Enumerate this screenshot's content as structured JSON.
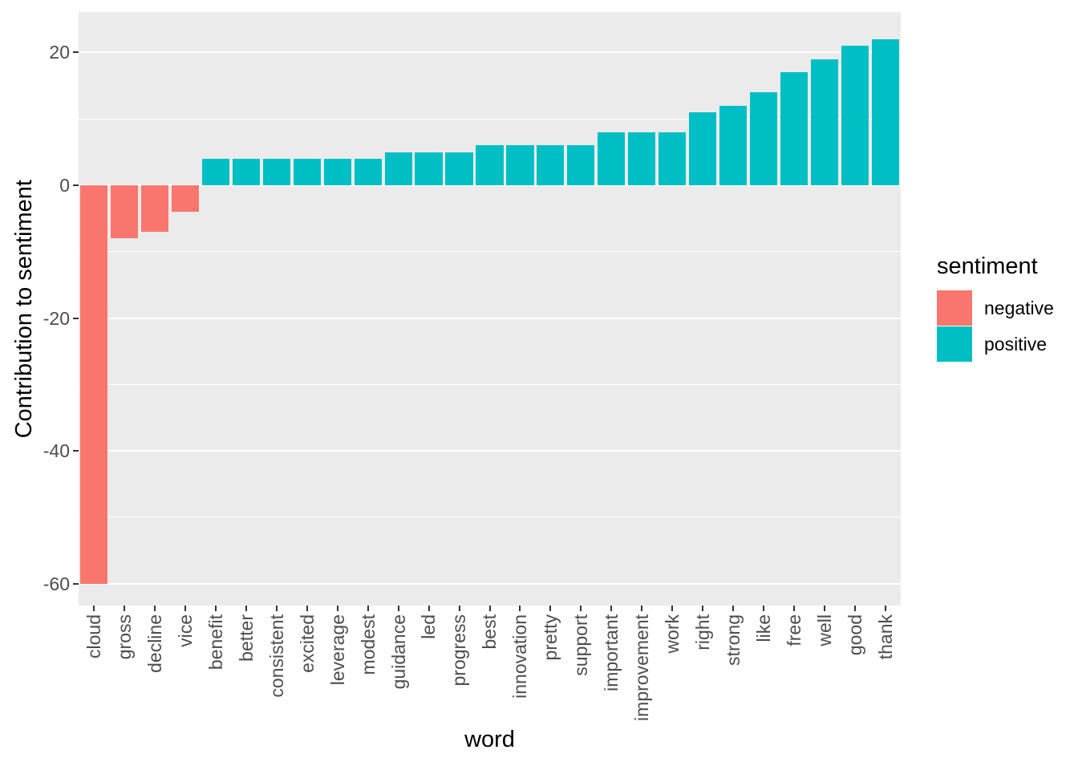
{
  "chart_data": {
    "type": "bar",
    "title": "",
    "xlabel": "word",
    "ylabel": "Contribution to sentiment",
    "categories": [
      "cloud",
      "gross",
      "decline",
      "vice",
      "benefit",
      "better",
      "consistent",
      "excited",
      "leverage",
      "modest",
      "guidance",
      "led",
      "progress",
      "best",
      "innovation",
      "pretty",
      "support",
      "important",
      "improvement",
      "work",
      "right",
      "strong",
      "like",
      "free",
      "well",
      "good",
      "thank"
    ],
    "values": [
      -60,
      -8,
      -7,
      -4,
      4,
      4,
      4,
      4,
      4,
      4,
      5,
      5,
      5,
      6,
      6,
      6,
      6,
      8,
      8,
      8,
      11,
      12,
      14,
      17,
      19,
      21,
      22
    ],
    "sentiments": [
      "negative",
      "negative",
      "negative",
      "negative",
      "positive",
      "positive",
      "positive",
      "positive",
      "positive",
      "positive",
      "positive",
      "positive",
      "positive",
      "positive",
      "positive",
      "positive",
      "positive",
      "positive",
      "positive",
      "positive",
      "positive",
      "positive",
      "positive",
      "positive",
      "positive",
      "positive",
      "positive"
    ],
    "series_colors": {
      "negative": "#F8766D",
      "positive": "#00BFC4"
    },
    "yticks": [
      20,
      0,
      -20,
      -40,
      -60
    ],
    "yminor_ticks": [
      10,
      -10,
      -30,
      -50
    ],
    "ylim": [
      -63.3,
      26.1
    ],
    "grid": true,
    "panel_bg": "#EBEBEB",
    "grid_color": "#FFFFFF",
    "legend": {
      "title": "sentiment",
      "position": "right",
      "entries": [
        {
          "label": "negative",
          "color": "#F8766D"
        },
        {
          "label": "positive",
          "color": "#00BFC4"
        }
      ]
    }
  }
}
